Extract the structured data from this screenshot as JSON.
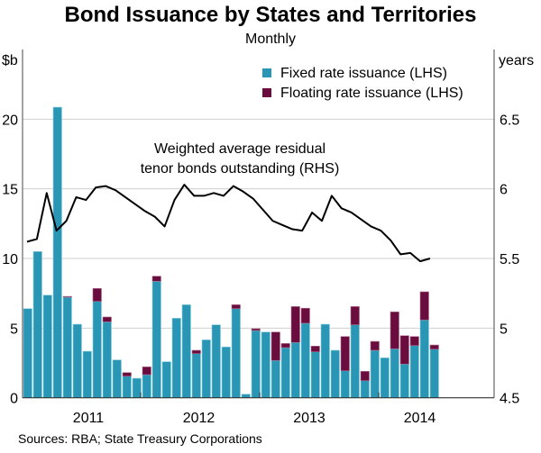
{
  "chart_data": {
    "type": "bar",
    "title": "Bond Issuance by States and Territories",
    "subtitle": "Monthly",
    "left_axis": {
      "unit_label": "$b",
      "ylim": [
        0,
        25
      ],
      "ticks": [
        "0",
        "5",
        "10",
        "15",
        "20"
      ]
    },
    "right_axis": {
      "unit_label": "years",
      "ylim": [
        4.5,
        7.0
      ],
      "ticks": [
        "4.5",
        "5",
        "5.5",
        "6",
        "6.5"
      ]
    },
    "x_tick_labels": [
      "2011",
      "2012",
      "2013",
      "2014"
    ],
    "x_range": "Jan 2011 – Dec 2014",
    "grid": true,
    "legend_placement": "top-right",
    "colors": {
      "fixed": "#2896b4",
      "floating": "#6a0d3e",
      "line": "#000000",
      "grid": "#cfcfcf"
    },
    "series": [
      {
        "name": "Fixed rate issuance (LHS)",
        "type": "stacked-bar",
        "axis": "left",
        "values": [
          6.4,
          10.5,
          7.37,
          20.86,
          7.22,
          5.28,
          3.34,
          6.92,
          5.45,
          2.72,
          1.55,
          1.4,
          1.66,
          8.36,
          2.59,
          5.71,
          6.68,
          3.17,
          4.16,
          5.24,
          3.65,
          6.4,
          0.26,
          4.83,
          4.72,
          2.68,
          3.6,
          3.97,
          5.35,
          3.3,
          5.28,
          3.41,
          1.94,
          5.24,
          1.23,
          3.41,
          2.87,
          3.52,
          2.42,
          3.75,
          5.59,
          3.49
        ]
      },
      {
        "name": "Floating rate issuance (LHS)",
        "type": "stacked-bar",
        "axis": "left",
        "values": [
          0,
          0,
          0,
          0,
          0.06,
          0,
          0,
          0.93,
          0.35,
          0,
          0.26,
          0,
          0.56,
          0.37,
          0,
          0,
          0,
          0.24,
          0,
          0,
          0,
          0.28,
          0,
          0.13,
          0,
          2.04,
          0.3,
          2.58,
          1.08,
          0.41,
          0,
          0,
          2.46,
          1.31,
          0.67,
          0.64,
          0,
          2.65,
          2.04,
          0.65,
          2.02,
          0.3
        ]
      },
      {
        "name": "Weighted average residual tenor bonds outstanding (RHS)",
        "type": "line",
        "axis": "right",
        "values": [
          5.62,
          5.64,
          5.97,
          5.7,
          5.77,
          5.94,
          5.92,
          6.01,
          6.02,
          5.99,
          5.94,
          5.89,
          5.84,
          5.8,
          5.73,
          5.92,
          6.03,
          5.95,
          5.95,
          5.97,
          5.95,
          6.02,
          5.98,
          5.93,
          5.85,
          5.77,
          5.74,
          5.71,
          5.7,
          5.83,
          5.77,
          5.95,
          5.86,
          5.83,
          5.78,
          5.73,
          5.7,
          5.63,
          5.53,
          5.54,
          5.48,
          5.5
        ]
      }
    ],
    "annotation": [
      "Weighted average residual",
      "tenor bonds outstanding (RHS)"
    ],
    "source": "Sources:  RBA; State Treasury Corporations"
  }
}
